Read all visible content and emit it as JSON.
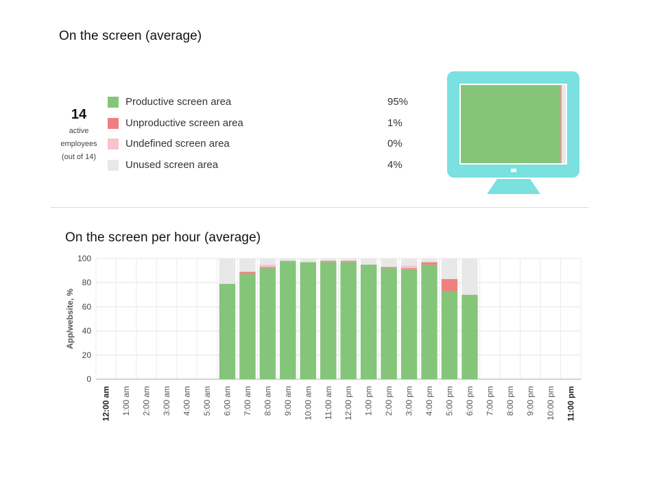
{
  "screen_section": {
    "title": "On the screen (average)",
    "employees": {
      "count": "14",
      "label_line1": "active",
      "label_line2": "employees",
      "label_line3": "(out of 14)"
    },
    "legend": [
      {
        "name": "Productive screen area",
        "value": "95%",
        "color": "#85c57a"
      },
      {
        "name": "Unproductive screen area",
        "value": "1%",
        "color": "#f08080"
      },
      {
        "name": "Undefined screen area",
        "value": "0%",
        "color": "#f7c3cc"
      },
      {
        "name": "Unused screen area",
        "value": "4%",
        "color": "#e8e8e8"
      }
    ],
    "monitor": {
      "frame_color": "#7ae0e0",
      "screen_fractions": [
        0.95,
        0.01,
        0.0,
        0.04
      ]
    }
  },
  "hourly_section": {
    "title": "On the screen per hour (average)"
  },
  "chart_data": {
    "type": "bar",
    "stacked": true,
    "ylabel": "App/website, %",
    "ylim": [
      0,
      100
    ],
    "yticks": [
      0,
      20,
      40,
      60,
      80,
      100
    ],
    "grid": true,
    "categories": [
      "12:00 am",
      "1:00 am",
      "2:00 am",
      "3:00 am",
      "4:00 am",
      "5:00 am",
      "6:00 am",
      "7:00 am",
      "8:00 am",
      "9:00 am",
      "10:00 am",
      "11:00 am",
      "12:00 pm",
      "1:00 pm",
      "2:00 pm",
      "3:00 pm",
      "4:00 pm",
      "5:00 pm",
      "6:00 pm",
      "7:00 pm",
      "8:00 pm",
      "9:00 pm",
      "10:00 pm",
      "11:00 pm"
    ],
    "bold_categories": [
      "12:00 am",
      "11:00 pm"
    ],
    "series": [
      {
        "name": "Productive screen area",
        "color": "#85c57a",
        "values": [
          0,
          0,
          0,
          0,
          0,
          0,
          79,
          87,
          92,
          98,
          97,
          97,
          97,
          95,
          92,
          91,
          95,
          73,
          70,
          0,
          0,
          0,
          0,
          0
        ]
      },
      {
        "name": "Unproductive screen area",
        "color": "#f08080",
        "values": [
          0,
          0,
          0,
          0,
          0,
          0,
          0,
          2,
          1,
          0,
          0,
          1,
          1,
          0,
          1,
          1,
          2,
          10,
          0,
          0,
          0,
          0,
          0,
          0
        ]
      },
      {
        "name": "Undefined screen area",
        "color": "#f7c3cc",
        "values": [
          0,
          0,
          0,
          0,
          0,
          0,
          0,
          0,
          2,
          0,
          0,
          0,
          0,
          0,
          0,
          2,
          0,
          0,
          0,
          0,
          0,
          0,
          0,
          0
        ]
      },
      {
        "name": "Unused screen area",
        "color": "#e8e8e8",
        "values": [
          0,
          0,
          0,
          0,
          0,
          0,
          21,
          11,
          5,
          2,
          3,
          2,
          2,
          5,
          7,
          6,
          3,
          17,
          30,
          0,
          0,
          0,
          0,
          0
        ]
      }
    ]
  }
}
